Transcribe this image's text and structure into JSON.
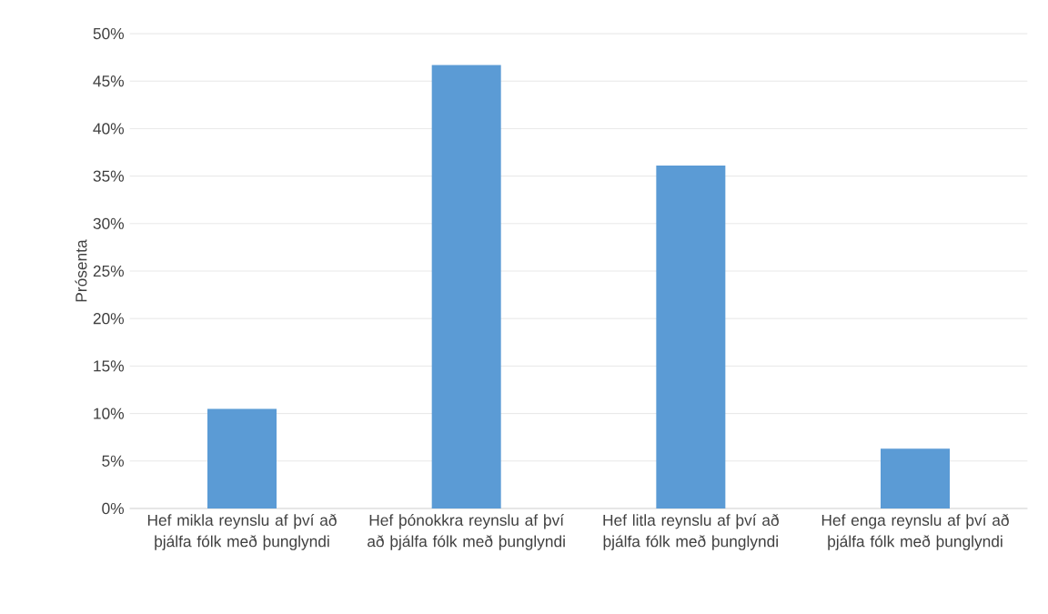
{
  "chart_data": {
    "type": "bar",
    "ylabel": "Prósenta",
    "categories": [
      "Hef mikla reynslu af því að þjálfa fólk með þunglyndi",
      "Hef þónokkra reynslu af því að þjálfa fólk með þunglyndi",
      "Hef litla reynslu af því að þjálfa fólk með þunglyndi",
      "Hef enga reynslu af því að þjálfa fólk með þunglyndi"
    ],
    "values": [
      10.5,
      46.7,
      36.1,
      6.3
    ],
    "color": "#5b9bd5",
    "ylim": [
      0,
      50
    ],
    "yticks": [
      {
        "value": 0,
        "label": "0%"
      },
      {
        "value": 5,
        "label": "5%"
      },
      {
        "value": 10,
        "label": "10%"
      },
      {
        "value": 15,
        "label": "15%"
      },
      {
        "value": 20,
        "label": "20%"
      },
      {
        "value": 25,
        "label": "25%"
      },
      {
        "value": 30,
        "label": "30%"
      },
      {
        "value": 35,
        "label": "35%"
      },
      {
        "value": 40,
        "label": "40%"
      },
      {
        "value": 45,
        "label": "45%"
      },
      {
        "value": 50,
        "label": "50%"
      }
    ],
    "grid": "y"
  }
}
